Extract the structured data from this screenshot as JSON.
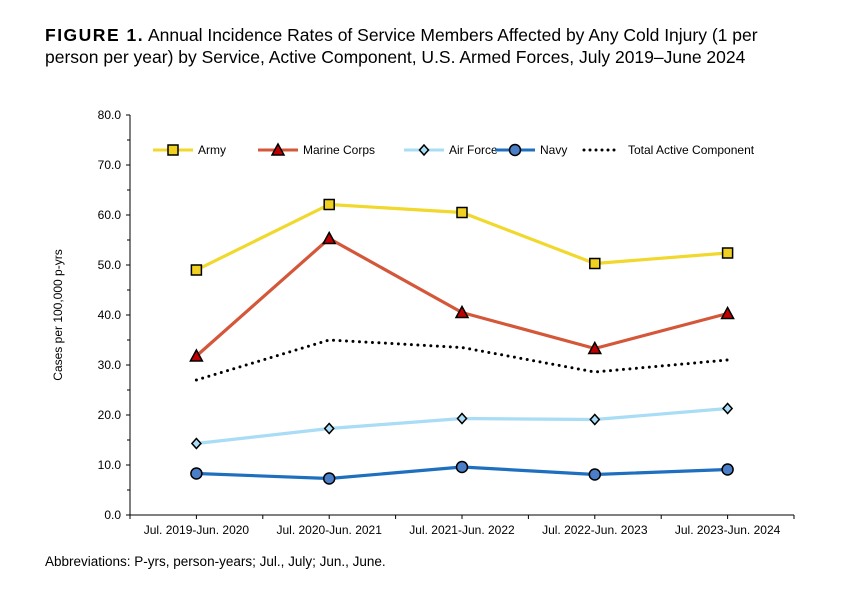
{
  "title_label": "FIGURE 1.",
  "title_text": "Annual Incidence Rates of Service Members Affected by Any Cold Injury (1 per person per year) by Service, Active Component, U.S. Armed Forces, July 2019–June 2024",
  "footnote": "Abbreviations: P-yrs, person-years; Jul., July; Jun., June.",
  "chart_data": {
    "type": "line",
    "ylabel": "Cases per 100,000 p-yrs",
    "xlabel": "",
    "ylim": [
      0,
      80
    ],
    "yticks": [
      "0.0",
      "10.0",
      "20.0",
      "30.0",
      "40.0",
      "50.0",
      "60.0",
      "70.0",
      "80.0"
    ],
    "categories": [
      "Jul. 2019-Jun. 2020",
      "Jul. 2020-Jun. 2021",
      "Jul. 2021-Jun. 2022",
      "Jul. 2022-Jun. 2023",
      "Jul. 2023-Jun. 2024"
    ],
    "legend_position": "top",
    "grid": false,
    "series": [
      {
        "name": "Army",
        "values": [
          49.0,
          62.1,
          60.5,
          50.3,
          52.4
        ],
        "color": "#f0d82c",
        "marker": "square",
        "marker_fill": "#f0d020",
        "style": "solid"
      },
      {
        "name": "Marine Corps",
        "values": [
          31.8,
          55.3,
          40.5,
          33.3,
          40.3
        ],
        "color": "#d4573a",
        "marker": "triangle",
        "marker_fill": "#c00000",
        "style": "solid"
      },
      {
        "name": "Air Force",
        "values": [
          14.3,
          17.3,
          19.3,
          19.1,
          21.3
        ],
        "color": "#a9dcf5",
        "marker": "diamond",
        "marker_fill": "#a9dcf5",
        "style": "solid"
      },
      {
        "name": "Navy",
        "values": [
          8.3,
          7.3,
          9.6,
          8.1,
          9.1
        ],
        "color": "#1f6fbf",
        "marker": "circle",
        "marker_fill": "#4a7fc8",
        "style": "solid"
      },
      {
        "name": "Total Active Component",
        "values": [
          27.0,
          35.0,
          33.5,
          28.6,
          31.0
        ],
        "color": "#000000",
        "marker": "none",
        "style": "dotted"
      }
    ]
  }
}
